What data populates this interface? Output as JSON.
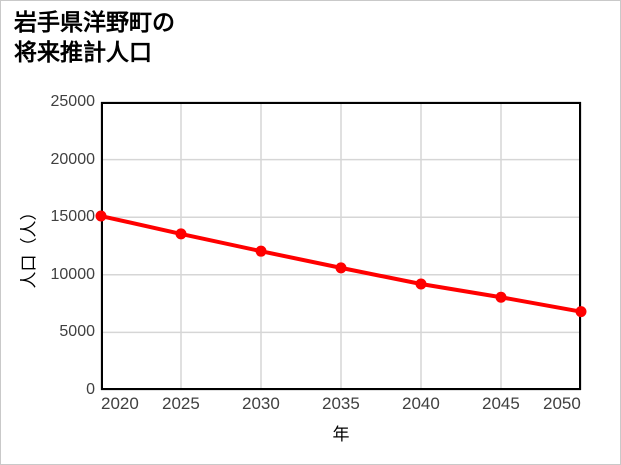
{
  "chart": {
    "title_lines": [
      "岩手県洋野町の",
      "将来推計人口"
    ],
    "x_axis_label": "年",
    "y_axis_label": "人口（人）"
  },
  "chart_data": {
    "type": "line",
    "title": "岩手県洋野町の将来推計人口",
    "xlabel": "年",
    "ylabel": "人口（人）",
    "x": [
      2020,
      2025,
      2030,
      2035,
      2040,
      2045,
      2050
    ],
    "series": [
      {
        "name": "将来推計人口",
        "values": [
          15100,
          13550,
          12050,
          10600,
          9200,
          8050,
          6800
        ]
      }
    ],
    "xlim": [
      2020,
      2050
    ],
    "ylim": [
      0,
      25000
    ],
    "x_ticks": [
      2020,
      2025,
      2030,
      2035,
      2040,
      2045,
      2050
    ],
    "y_ticks": [
      0,
      5000,
      10000,
      15000,
      20000,
      25000
    ],
    "grid": true,
    "legend": false,
    "marker": "circle",
    "colors": {
      "line": "#ff0000",
      "grid": "#d6d6d6",
      "axis_border": "#000000",
      "tick_text": "#404040",
      "title_text": "#000000",
      "background": "#ffffff"
    }
  }
}
